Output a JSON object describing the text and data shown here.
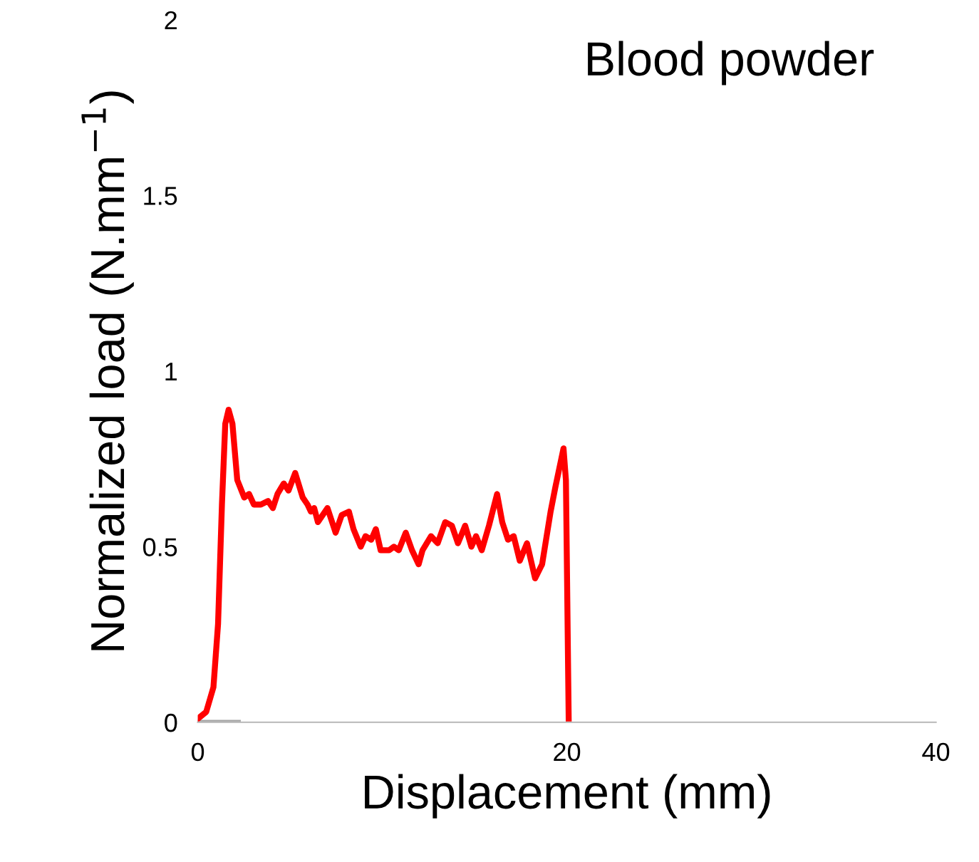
{
  "chart_data": {
    "type": "line",
    "title": "Blood powder",
    "xlabel": "Displacement (mm)",
    "ylabel": "Normalized load (N.mm$^{−1}$)",
    "xlim": [
      0,
      40
    ],
    "xticks": [
      0,
      20,
      40
    ],
    "ylim": [
      0,
      2
    ],
    "yticks": [
      0,
      0.5,
      1,
      1.5,
      2
    ],
    "grid": false,
    "legend": false,
    "marker": "none",
    "line_style": "solid",
    "series": [
      {
        "color": "#a6a6a6",
        "x": [
          0,
          2.2
        ],
        "values": [
          0,
          0
        ]
      },
      {
        "color": "#ff0000",
        "x": [
          0,
          0.46,
          0.85,
          1.1,
          1.31,
          1.49,
          1.67,
          1.88,
          2.14,
          2.52,
          2.78,
          3.04,
          3.42,
          3.81,
          4.07,
          4.32,
          4.66,
          4.92,
          5.28,
          5.69,
          5.95,
          6.13,
          6.31,
          6.51,
          7.03,
          7.47,
          7.8,
          8.19,
          8.44,
          8.83,
          9.09,
          9.4,
          9.65,
          9.91,
          10.37,
          10.63,
          10.89,
          11.27,
          11.61,
          11.97,
          12.18,
          12.64,
          13.0,
          13.41,
          13.77,
          14.1,
          14.49,
          14.83,
          15.08,
          15.39,
          15.78,
          16.22,
          16.5,
          16.81,
          17.12,
          17.45,
          17.84,
          18.28,
          18.66,
          19.12,
          19.38,
          19.82,
          19.95,
          20.1
        ],
        "values": [
          0.01,
          0.03,
          0.1,
          0.28,
          0.62,
          0.85,
          0.89,
          0.85,
          0.69,
          0.64,
          0.65,
          0.62,
          0.62,
          0.63,
          0.61,
          0.65,
          0.68,
          0.66,
          0.71,
          0.64,
          0.62,
          0.6,
          0.61,
          0.57,
          0.61,
          0.54,
          0.59,
          0.6,
          0.55,
          0.5,
          0.53,
          0.52,
          0.55,
          0.49,
          0.49,
          0.5,
          0.49,
          0.54,
          0.49,
          0.45,
          0.49,
          0.53,
          0.51,
          0.57,
          0.56,
          0.51,
          0.56,
          0.5,
          0.53,
          0.49,
          0.56,
          0.65,
          0.57,
          0.52,
          0.53,
          0.46,
          0.51,
          0.41,
          0.45,
          0.6,
          0.67,
          0.78,
          0.69,
          0.01
        ]
      }
    ]
  }
}
